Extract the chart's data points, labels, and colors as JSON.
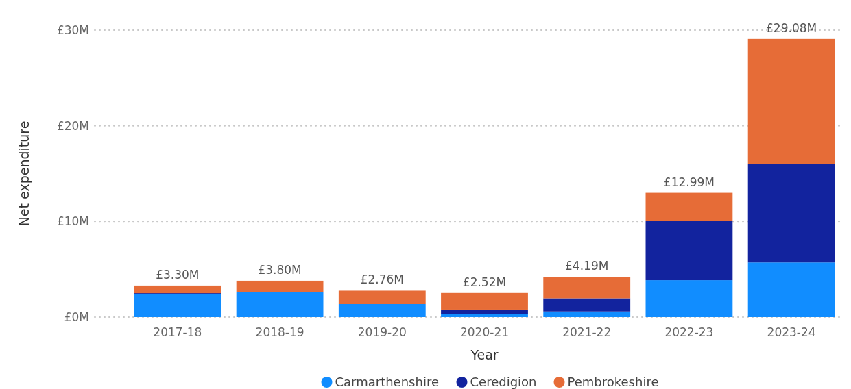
{
  "chart_data": {
    "type": "bar",
    "stacked": true,
    "xlabel": "Year",
    "ylabel": "Net expenditure",
    "categories": [
      "2017-18",
      "2018-19",
      "2019-20",
      "2020-21",
      "2021-22",
      "2022-23",
      "2023-24"
    ],
    "series": [
      {
        "name": "Carmarthenshire",
        "color": "#118dff",
        "values": [
          2.38,
          2.61,
          1.36,
          0.31,
          0.59,
          3.86,
          5.71
        ]
      },
      {
        "name": "Ceredigion",
        "color": "#12239e",
        "values": [
          0.12,
          0,
          0,
          0.48,
          1.38,
          6.19,
          10.29
        ]
      },
      {
        "name": "Pembrokeshire",
        "color": "#e66c37",
        "values": [
          0.8,
          1.19,
          1.4,
          1.73,
          2.22,
          2.94,
          13.08
        ]
      }
    ],
    "totals": [
      "£3.30M",
      "£3.80M",
      "£2.76M",
      "£2.52M",
      "£4.19M",
      "£12.99M",
      "£29.08M"
    ],
    "ylim": [
      0,
      30
    ],
    "yticks": [
      {
        "value": 0,
        "label": "£0M"
      },
      {
        "value": 10,
        "label": "£10M"
      },
      {
        "value": 20,
        "label": "£20M"
      },
      {
        "value": 30,
        "label": "£30M"
      }
    ],
    "grid": "y",
    "legend": "bottom"
  }
}
